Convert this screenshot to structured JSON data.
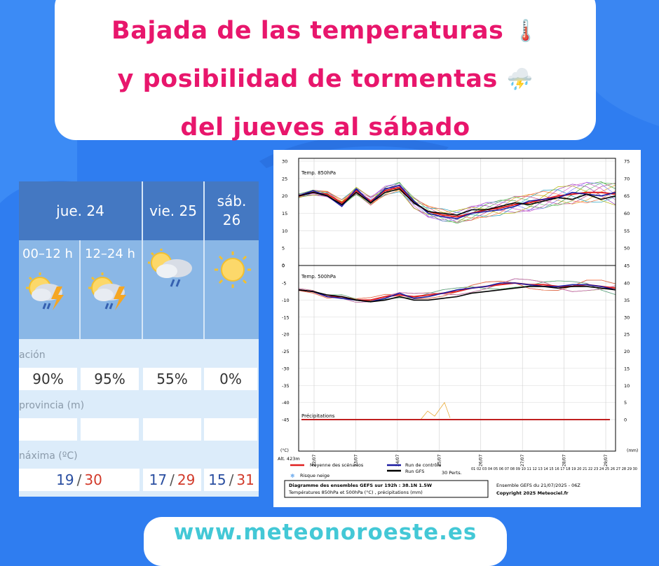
{
  "title": {
    "line1": "Bajada de las temperaturas",
    "line2": "y posibilidad de tormentas",
    "line3": "del jueves al sábado",
    "line1_emoji": "🌡️",
    "line2_emoji": "⛈️"
  },
  "forecast": {
    "days": [
      {
        "label": "jue. 24"
      },
      {
        "label": "vie. 25"
      },
      {
        "label": "sáb. 26"
      }
    ],
    "periods": [
      "00–12 h",
      "12–24 h"
    ],
    "icons": [
      "storm-icon",
      "storm-icon",
      "rain-cloud-icon",
      "sun-icon"
    ],
    "rows": {
      "precip_label": "ación",
      "precip": [
        "90%",
        "95%",
        "55%",
        "0%"
      ],
      "snow_label": "provincia (m)",
      "temp_label": "náxima (ºC)",
      "temps": [
        {
          "min": "19",
          "max": "30"
        },
        {
          "min": "17",
          "max": "29"
        },
        {
          "min": "15",
          "max": "31"
        }
      ]
    },
    "colors": {
      "header": "#4478c2",
      "icon_band": "#8ab7e6",
      "min": "#2a4ea0",
      "max": "#d23a2a"
    }
  },
  "chart_data": {
    "type": "line",
    "panels": [
      {
        "title": "Temp. 850hPa",
        "y_ticks": [
          "30",
          "25",
          "20",
          "15",
          "10",
          "5",
          "0"
        ],
        "right_ticks": [
          "75",
          "70",
          "65",
          "60",
          "55",
          "50",
          "45"
        ]
      },
      {
        "title": "Temp. 500hPa",
        "y_ticks": [
          "-5",
          "-10",
          "-15",
          "-20",
          "-25",
          "-30",
          "-35"
        ],
        "right_ticks": [
          "40",
          "35",
          "30",
          "25",
          "20",
          "15",
          "10"
        ]
      },
      {
        "title": "Précipitations",
        "y_ticks": [
          "-40",
          "-45"
        ],
        "right_ticks": [
          "5",
          "0"
        ]
      }
    ],
    "x": [
      "22/07",
      "23/07",
      "24/07",
      "25/07",
      "26/07",
      "27/07",
      "28/07",
      "29/07"
    ],
    "series": [
      {
        "name": "Moyenne des scénarios",
        "color": "#e02020",
        "t850": [
          20,
          21,
          20.5,
          18,
          21.5,
          18.5,
          21.5,
          22.5,
          18,
          15.5,
          14.5,
          14,
          15,
          16,
          16.5,
          17.5,
          18,
          19,
          20,
          20.5,
          21,
          21,
          20.5
        ],
        "t500": [
          -7,
          -7.5,
          -9,
          -9,
          -10,
          -10,
          -9,
          -8.5,
          -9,
          -8.5,
          -8,
          -7.5,
          -6.5,
          -6,
          -5.5,
          -5,
          -5.5,
          -5.5,
          -6,
          -6,
          -5.5,
          -6,
          -6.5
        ]
      },
      {
        "name": "Run de contrôle",
        "color": "#1a1aa0",
        "t850": [
          20,
          21.5,
          20,
          17,
          22,
          18,
          22,
          23,
          18.5,
          15,
          14,
          13.5,
          15,
          15.5,
          16,
          17,
          18.5,
          19,
          19.5,
          21,
          20.5,
          20,
          21
        ],
        "t500": [
          -7,
          -7.5,
          -9,
          -9.5,
          -10,
          -10.5,
          -9.5,
          -8,
          -9.5,
          -9,
          -8,
          -7,
          -6.5,
          -6,
          -5,
          -5,
          -5.5,
          -6,
          -6,
          -5.5,
          -5.5,
          -6,
          -7
        ]
      },
      {
        "name": "Run GFS",
        "color": "#000000",
        "t850": [
          20,
          21,
          20,
          17.5,
          21,
          18,
          21,
          22,
          18,
          15.5,
          15,
          14.5,
          16,
          16,
          17,
          18,
          17.5,
          18.5,
          19.5,
          19,
          20.5,
          19,
          20
        ],
        "t500": [
          -7,
          -7.5,
          -8.5,
          -9,
          -10,
          -10.5,
          -10,
          -9,
          -10,
          -10,
          -9.5,
          -9,
          -8,
          -7.5,
          -7,
          -6.5,
          -6,
          -6,
          -6.5,
          -6,
          -6,
          -6.5,
          -7
        ]
      }
    ],
    "legend_extra": [
      "Risque neige",
      "30 Perts."
    ],
    "footer": {
      "altitude": "Alt. 423m",
      "caption1": "Diagramme des ensembles GEFS sur 192h : 38.1N 1.5W",
      "caption2": "Températures 850hPa et 500hPa (°C) , précipitations (mm)",
      "ensemble": "Ensemble GEFS du 21/07/2025 - 06Z",
      "copyright": "Copyright 2025 Meteociel.fr",
      "unit_left": "(°C)",
      "unit_right": "(mm)",
      "members": "01 02 03 04 05 06 07 08 09 10 11 12 13 14 15 16 17 18 19 20 21 22 23 24 25 26 27 28 29 30"
    }
  },
  "url": "www.meteonoroeste.es"
}
